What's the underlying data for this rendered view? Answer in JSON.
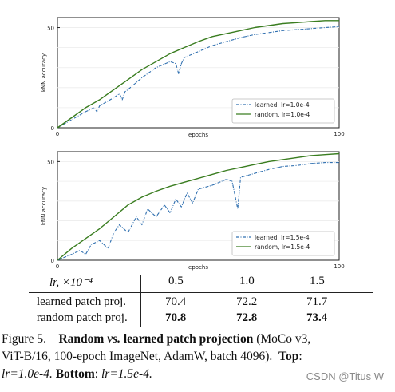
{
  "chart_data": [
    {
      "type": "line",
      "xlabel": "epochs",
      "ylabel": "kNN accuracy",
      "xlim": [
        0,
        100
      ],
      "ylim": [
        0,
        55
      ],
      "x_ticks": [
        "0",
        "100"
      ],
      "y_ticks": [
        "0",
        "50"
      ],
      "legend_position": "bottom-right",
      "series": [
        {
          "name": "learned, lr=1.0e-4",
          "style": "dashdot",
          "color": "#3070b0",
          "x": [
            0,
            5,
            10,
            13,
            14,
            15,
            20,
            22,
            23,
            24,
            25,
            30,
            35,
            40,
            42,
            43,
            44,
            45,
            50,
            55,
            60,
            65,
            70,
            75,
            80,
            85,
            90,
            95,
            100
          ],
          "y": [
            0,
            4,
            8,
            10,
            8,
            11,
            15,
            17,
            14,
            18,
            19,
            25,
            30,
            33,
            32,
            27,
            32,
            35,
            38,
            41,
            43,
            45,
            46.5,
            47.5,
            48.5,
            49,
            49.5,
            50,
            50.5
          ]
        },
        {
          "name": "random, lr=1.0e-4",
          "style": "solid",
          "color": "#3a7d20",
          "x": [
            0,
            5,
            10,
            15,
            20,
            25,
            30,
            35,
            40,
            45,
            50,
            55,
            60,
            65,
            70,
            75,
            80,
            85,
            90,
            95,
            100
          ],
          "y": [
            0,
            5,
            10,
            14,
            19,
            24,
            29,
            33,
            37,
            40,
            43,
            45.5,
            47,
            48.5,
            50,
            51,
            52,
            52.5,
            53,
            53.5,
            53.5
          ]
        }
      ]
    },
    {
      "type": "line",
      "xlabel": "epochs",
      "ylabel": "kNN accuracy",
      "xlim": [
        0,
        100
      ],
      "ylim": [
        0,
        55
      ],
      "x_ticks": [
        "0",
        "100"
      ],
      "y_ticks": [
        "0",
        "50"
      ],
      "legend_position": "bottom-right",
      "series": [
        {
          "name": "learned, lr=1.5e-4",
          "style": "dashdot",
          "color": "#3070b0",
          "x": [
            0,
            5,
            8,
            10,
            12,
            15,
            18,
            20,
            22,
            25,
            28,
            30,
            32,
            35,
            38,
            40,
            42,
            44,
            46,
            48,
            50,
            55,
            60,
            62,
            64,
            65,
            70,
            75,
            80,
            85,
            90,
            95,
            100
          ],
          "y": [
            0,
            3,
            5,
            3,
            8,
            10,
            6,
            14,
            18,
            14,
            22,
            18,
            26,
            22,
            28,
            24,
            31,
            27,
            34,
            29,
            36,
            38,
            41,
            40,
            26,
            42,
            44,
            46,
            47.5,
            48,
            49,
            49.5,
            49.5
          ]
        },
        {
          "name": "random, lr=1.5e-4",
          "style": "solid",
          "color": "#3a7d20",
          "x": [
            0,
            5,
            10,
            15,
            20,
            25,
            30,
            35,
            40,
            45,
            50,
            55,
            60,
            65,
            70,
            75,
            80,
            85,
            90,
            95,
            100
          ],
          "y": [
            0,
            6,
            11,
            16,
            22,
            28,
            32,
            35,
            37.5,
            39.5,
            41.5,
            43.5,
            45.5,
            47,
            48.5,
            50,
            51,
            52,
            53,
            53.5,
            54
          ]
        }
      ]
    },
    {
      "type": "table",
      "header": {
        "label": "lr, ×10⁻⁴",
        "cols": [
          "0.5",
          "1.0",
          "1.5"
        ]
      },
      "rows": [
        {
          "label": "learned patch proj.",
          "values": [
            "70.4",
            "72.2",
            "71.7"
          ],
          "bold": false
        },
        {
          "label": "random patch proj.",
          "values": [
            "70.8",
            "72.8",
            "73.4"
          ],
          "bold": true
        }
      ]
    }
  ],
  "caption": {
    "fig_label": "Figure 5.",
    "title_a": "Random",
    "title_vs": "vs.",
    "title_b": "learned patch projection",
    "line1_rest": "(MoCo v3,",
    "line2": "ViT-B/16, 100-epoch ImageNet, AdamW, batch 4096).",
    "top_label": "Top",
    "top_text": "lr=1.0e-4.",
    "bottom_label": "Bottom",
    "bottom_text": "lr=1.5e-4."
  },
  "watermark": "CSDN @Titus W"
}
